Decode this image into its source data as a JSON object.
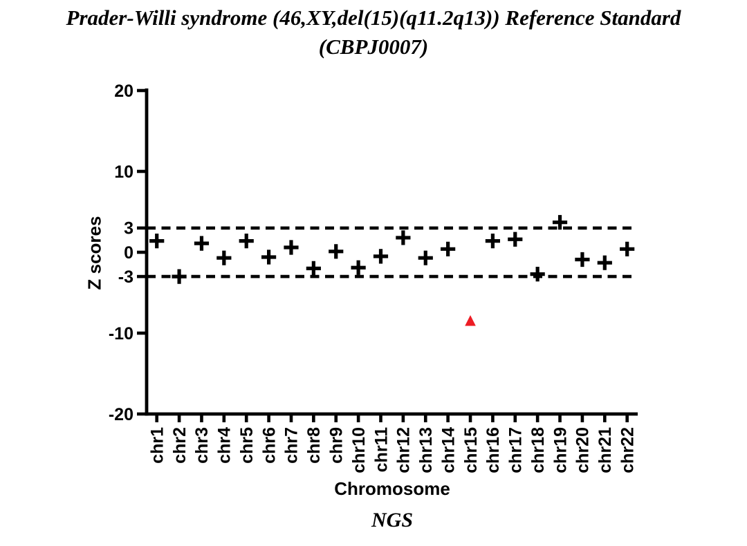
{
  "chart_data": {
    "type": "scatter",
    "title": "Prader-Willi syndrome (46,XY,del(15)(q11.2q13)) Reference Standard",
    "subtitle": "(CBPJ0007)",
    "xlabel": "Chromosome",
    "ylabel": "Z scores",
    "ylim": [
      -20,
      20
    ],
    "yticks": [
      20,
      10,
      3,
      0,
      -3,
      -10,
      -20
    ],
    "grid": false,
    "legend": "none",
    "threshold_lines": {
      "values": [
        3,
        -3
      ],
      "style": "dashed",
      "color": "#000000"
    },
    "categories": [
      "chr1",
      "chr2",
      "chr3",
      "chr4",
      "chr5",
      "chr6",
      "chr7",
      "chr8",
      "chr9",
      "chr10",
      "chr11",
      "chr12",
      "chr13",
      "chr14",
      "chr15",
      "chr16",
      "chr17",
      "chr18",
      "chr19",
      "chr20",
      "chr21",
      "chr22"
    ],
    "series": [
      {
        "name": "NGS",
        "marker": "plus",
        "color": "#000000",
        "values": [
          1.4,
          -3.0,
          1.1,
          -0.7,
          1.4,
          -0.6,
          0.6,
          -2.0,
          0.1,
          -1.9,
          -0.5,
          1.8,
          -0.7,
          0.4,
          null,
          1.4,
          1.6,
          -2.7,
          3.7,
          -0.9,
          -1.3,
          0.4
        ]
      }
    ],
    "outlier": {
      "category": "chr15",
      "value": -8.5,
      "marker": "triangle-up",
      "color": "#ED1C24"
    }
  }
}
